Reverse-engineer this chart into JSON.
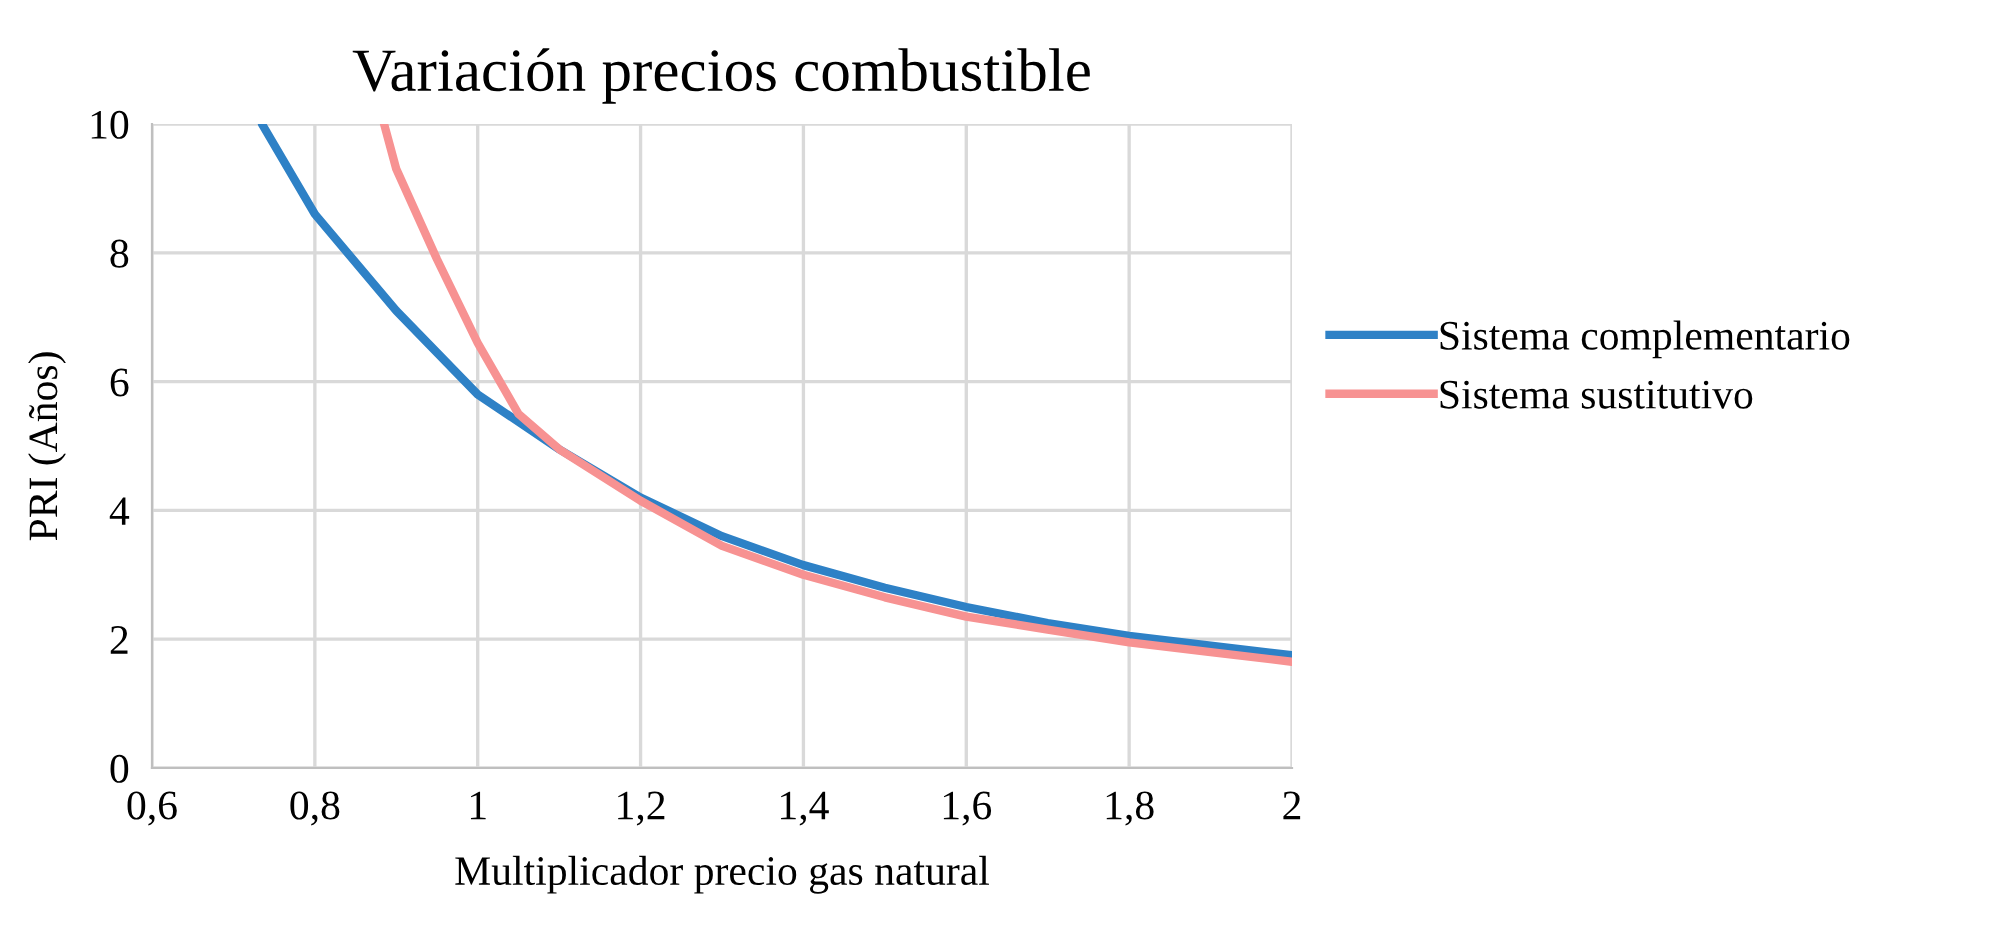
{
  "chart_data": {
    "type": "line",
    "title": "Variación precios combustible",
    "xlabel": "Multiplicador precio gas natural",
    "ylabel": "PRI (Años)",
    "xlim": [
      0.6,
      2
    ],
    "xticks": [
      {
        "value": 0.6,
        "label": "0,6"
      },
      {
        "value": 0.8,
        "label": "0,8"
      },
      {
        "value": 1,
        "label": "1"
      },
      {
        "value": 1.2,
        "label": "1,2"
      },
      {
        "value": 1.4,
        "label": "1,4"
      },
      {
        "value": 1.6,
        "label": "1,6"
      },
      {
        "value": 1.8,
        "label": "1,8"
      },
      {
        "value": 2,
        "label": "2"
      }
    ],
    "ylim": [
      0,
      10
    ],
    "yticks": [
      0,
      2,
      4,
      6,
      8,
      10
    ],
    "grid": true,
    "legend": "right",
    "marker": "none",
    "line_style": "solid",
    "series": [
      {
        "name": "Sistema complementario",
        "color": "#2e81c6",
        "x": [
          0.735,
          0.8,
          0.9,
          1.0,
          1.1,
          1.2,
          1.3,
          1.4,
          1.5,
          1.6,
          1.7,
          1.8,
          1.9,
          2.0
        ],
        "values": [
          10,
          8.6,
          7.1,
          5.8,
          4.95,
          4.2,
          3.6,
          3.15,
          2.8,
          2.5,
          2.25,
          2.05,
          1.9,
          1.75
        ]
      },
      {
        "name": "Sistema sustitutivo",
        "color": "#f79292",
        "x": [
          0.885,
          0.9,
          0.95,
          1.0,
          1.05,
          1.1,
          1.2,
          1.3,
          1.4,
          1.5,
          1.6,
          1.7,
          1.8,
          1.9,
          2.0
        ],
        "values": [
          10,
          9.3,
          7.9,
          6.6,
          5.5,
          4.95,
          4.15,
          3.45,
          3.0,
          2.65,
          2.35,
          2.15,
          1.95,
          1.8,
          1.65
        ]
      }
    ]
  }
}
